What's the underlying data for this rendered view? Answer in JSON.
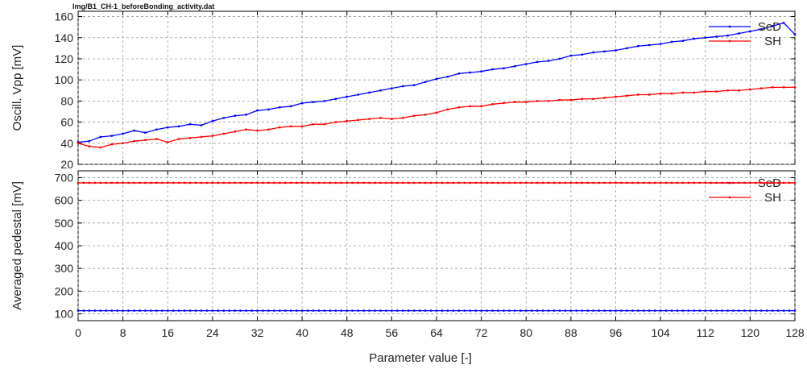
{
  "file_label": "Img/B1_CH-1_beforeBonding_activity.dat",
  "chart_data": [
    {
      "type": "line",
      "ylabel": "Oscill. Vpp [mV]",
      "xlim": [
        0,
        128
      ],
      "ylim": [
        20,
        165
      ],
      "yticks": [
        20,
        40,
        60,
        80,
        100,
        120,
        140,
        160
      ],
      "grid": true,
      "legend_position": "top-right",
      "series": [
        {
          "name": "SeD",
          "color": "#0000ff",
          "x": [
            0,
            2,
            4,
            6,
            8,
            10,
            12,
            14,
            16,
            18,
            20,
            22,
            24,
            26,
            28,
            30,
            32,
            34,
            36,
            38,
            40,
            42,
            44,
            46,
            48,
            50,
            52,
            54,
            56,
            58,
            60,
            62,
            64,
            66,
            68,
            70,
            72,
            74,
            76,
            78,
            80,
            82,
            84,
            86,
            88,
            90,
            92,
            94,
            96,
            98,
            100,
            102,
            104,
            106,
            108,
            110,
            112,
            114,
            116,
            118,
            120,
            122,
            124,
            126,
            128
          ],
          "values": [
            41,
            42,
            46,
            47,
            49,
            52,
            50,
            53,
            55,
            56,
            58,
            57,
            61,
            64,
            66,
            67,
            71,
            72,
            74,
            75,
            78,
            79,
            80,
            82,
            84,
            86,
            88,
            90,
            92,
            94,
            95,
            98,
            101,
            103,
            106,
            107,
            108,
            110,
            111,
            113,
            115,
            117,
            118,
            120,
            123,
            124,
            126,
            127,
            128,
            130,
            132,
            133,
            134,
            136,
            137,
            139,
            140,
            141,
            142,
            144,
            146,
            148,
            151,
            154,
            143
          ]
        },
        {
          "name": "SH",
          "color": "#ff0000",
          "x": [
            0,
            2,
            4,
            6,
            8,
            10,
            12,
            14,
            16,
            18,
            20,
            22,
            24,
            26,
            28,
            30,
            32,
            34,
            36,
            38,
            40,
            42,
            44,
            46,
            48,
            50,
            52,
            54,
            56,
            58,
            60,
            62,
            64,
            66,
            68,
            70,
            72,
            74,
            76,
            78,
            80,
            82,
            84,
            86,
            88,
            90,
            92,
            94,
            96,
            98,
            100,
            102,
            104,
            106,
            108,
            110,
            112,
            114,
            116,
            118,
            120,
            122,
            124,
            126,
            128
          ],
          "values": [
            40,
            37,
            36,
            39,
            40,
            42,
            43,
            44,
            41,
            44,
            45,
            46,
            47,
            49,
            51,
            53,
            52,
            53,
            55,
            56,
            56,
            58,
            58,
            60,
            61,
            62,
            63,
            64,
            63,
            64,
            66,
            67,
            69,
            72,
            74,
            75,
            75,
            77,
            78,
            79,
            79,
            80,
            80,
            81,
            81,
            82,
            82,
            83,
            84,
            85,
            86,
            86,
            87,
            87,
            88,
            88,
            89,
            89,
            90,
            90,
            91,
            92,
            93,
            93,
            93
          ]
        }
      ]
    },
    {
      "type": "line",
      "ylabel": "Averaged pedestal [mV]",
      "xlabel": "Parameter value [-]",
      "xlim": [
        0,
        128
      ],
      "ylim": [
        70,
        730
      ],
      "yticks": [
        100,
        200,
        300,
        400,
        500,
        600,
        700
      ],
      "xticks": [
        0,
        8,
        16,
        24,
        32,
        40,
        48,
        56,
        64,
        72,
        80,
        88,
        96,
        104,
        112,
        120,
        128
      ],
      "grid": true,
      "legend_position": "top-right",
      "series": [
        {
          "name": "SeD",
          "color": "#0000ff",
          "x": [
            0,
            16,
            32,
            48,
            64,
            80,
            96,
            112,
            128
          ],
          "values": [
            114,
            114,
            114,
            114,
            114,
            114,
            114,
            114,
            114
          ]
        },
        {
          "name": "SH",
          "color": "#ff0000",
          "x": [
            0,
            16,
            32,
            48,
            64,
            80,
            96,
            112,
            128
          ],
          "values": [
            677,
            677,
            677,
            677,
            677,
            677,
            677,
            677,
            677
          ]
        }
      ]
    }
  ]
}
